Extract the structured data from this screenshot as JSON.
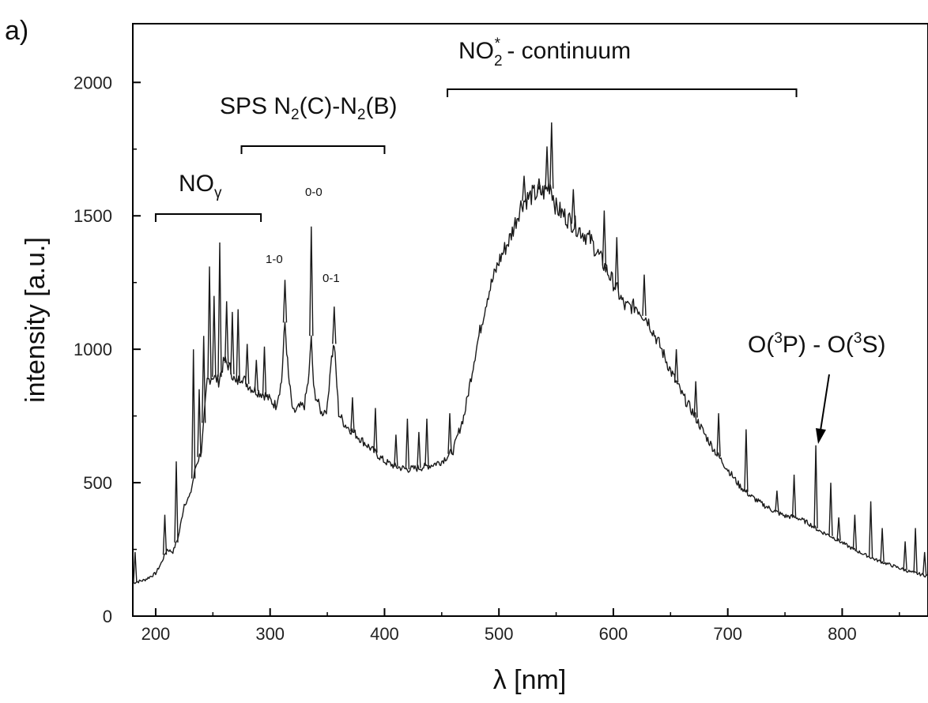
{
  "panel_label": "a)",
  "chart_data": {
    "type": "line",
    "title": "",
    "xlabel": "λ [nm]",
    "ylabel": "intensity [a.u.]",
    "xlim": [
      180,
      875
    ],
    "ylim": [
      0,
      2220
    ],
    "xticks": [
      200,
      300,
      400,
      500,
      600,
      700,
      800
    ],
    "yticks": [
      0,
      500,
      1000,
      1500,
      2000
    ],
    "grid": false,
    "legend": "none",
    "series": [
      {
        "points": [
          [
            180,
            125
          ],
          [
            190,
            135
          ],
          [
            200,
            160
          ],
          [
            205,
            200
          ],
          [
            210,
            250
          ],
          [
            215,
            240
          ],
          [
            220,
            300
          ],
          [
            225,
            420
          ],
          [
            230,
            450
          ],
          [
            235,
            560
          ],
          [
            240,
            620
          ],
          [
            245,
            880
          ],
          [
            250,
            900
          ],
          [
            255,
            880
          ],
          [
            260,
            960
          ],
          [
            265,
            930
          ],
          [
            270,
            870
          ],
          [
            275,
            900
          ],
          [
            280,
            870
          ],
          [
            285,
            850
          ],
          [
            290,
            840
          ],
          [
            295,
            830
          ],
          [
            300,
            810
          ],
          [
            305,
            790
          ],
          [
            310,
            880
          ],
          [
            313,
            1100
          ],
          [
            316,
            900
          ],
          [
            320,
            760
          ],
          [
            325,
            780
          ],
          [
            330,
            790
          ],
          [
            334,
            900
          ],
          [
            336,
            1050
          ],
          [
            338,
            850
          ],
          [
            345,
            760
          ],
          [
            350,
            780
          ],
          [
            353,
            950
          ],
          [
            356,
            1020
          ],
          [
            360,
            760
          ],
          [
            365,
            720
          ],
          [
            370,
            700
          ],
          [
            380,
            660
          ],
          [
            390,
            620
          ],
          [
            400,
            580
          ],
          [
            410,
            560
          ],
          [
            420,
            550
          ],
          [
            430,
            555
          ],
          [
            440,
            565
          ],
          [
            450,
            580
          ],
          [
            460,
            620
          ],
          [
            470,
            760
          ],
          [
            480,
            1000
          ],
          [
            490,
            1200
          ],
          [
            500,
            1330
          ],
          [
            510,
            1420
          ],
          [
            520,
            1550
          ],
          [
            530,
            1580
          ],
          [
            540,
            1590
          ],
          [
            545,
            1620
          ],
          [
            550,
            1530
          ],
          [
            560,
            1490
          ],
          [
            570,
            1450
          ],
          [
            580,
            1410
          ],
          [
            590,
            1330
          ],
          [
            600,
            1250
          ],
          [
            610,
            1160
          ],
          [
            620,
            1160
          ],
          [
            630,
            1110
          ],
          [
            640,
            1020
          ],
          [
            650,
            920
          ],
          [
            660,
            830
          ],
          [
            670,
            760
          ],
          [
            680,
            680
          ],
          [
            690,
            610
          ],
          [
            700,
            550
          ],
          [
            710,
            490
          ],
          [
            720,
            450
          ],
          [
            730,
            420
          ],
          [
            740,
            395
          ],
          [
            750,
            375
          ],
          [
            760,
            370
          ],
          [
            770,
            350
          ],
          [
            780,
            320
          ],
          [
            790,
            300
          ],
          [
            800,
            275
          ],
          [
            810,
            250
          ],
          [
            820,
            230
          ],
          [
            830,
            210
          ],
          [
            840,
            195
          ],
          [
            850,
            180
          ],
          [
            860,
            165
          ],
          [
            875,
            150
          ]
        ]
      }
    ],
    "peaks": [
      [
        182,
        240
      ],
      [
        208,
        380
      ],
      [
        218,
        580
      ],
      [
        233,
        1000
      ],
      [
        238,
        850
      ],
      [
        242,
        1050
      ],
      [
        247,
        1310
      ],
      [
        251,
        1200
      ],
      [
        256,
        1400
      ],
      [
        262,
        1180
      ],
      [
        267,
        1140
      ],
      [
        272,
        1150
      ],
      [
        280,
        1020
      ],
      [
        288,
        960
      ],
      [
        295,
        1010
      ],
      [
        313,
        1260
      ],
      [
        336,
        1460
      ],
      [
        356,
        1160
      ],
      [
        372,
        820
      ],
      [
        392,
        780
      ],
      [
        410,
        680
      ],
      [
        420,
        740
      ],
      [
        430,
        690
      ],
      [
        437,
        740
      ],
      [
        457,
        760
      ],
      [
        522,
        1650
      ],
      [
        535,
        1640
      ],
      [
        542,
        1760
      ],
      [
        546,
        1850
      ],
      [
        565,
        1600
      ],
      [
        592,
        1520
      ],
      [
        603,
        1420
      ],
      [
        627,
        1280
      ],
      [
        655,
        1000
      ],
      [
        672,
        880
      ],
      [
        692,
        760
      ],
      [
        716,
        700
      ],
      [
        743,
        470
      ],
      [
        758,
        530
      ],
      [
        777,
        640
      ],
      [
        790,
        500
      ],
      [
        797,
        370
      ],
      [
        811,
        380
      ],
      [
        825,
        430
      ],
      [
        835,
        330
      ],
      [
        855,
        280
      ],
      [
        864,
        330
      ],
      [
        872,
        240
      ]
    ],
    "annotations": [
      {
        "id": "no-gamma",
        "label": "NO",
        "sub": "γ",
        "range": [
          200,
          292
        ]
      },
      {
        "id": "sps",
        "label_a": "SPS N",
        "sub_a": "2",
        "label_b": "(C)-N",
        "sub_b": "2",
        "label_c": "(B)",
        "range": [
          275,
          400
        ]
      },
      {
        "id": "no2",
        "label_a": "NO",
        "sub_a": "2",
        "sup_a": "*",
        "label_b": " - continuum",
        "range": [
          455,
          760
        ]
      },
      {
        "id": "band-1-0",
        "label": "1-0",
        "x": 313
      },
      {
        "id": "band-0-0",
        "label": "0-0",
        "x": 336
      },
      {
        "id": "band-0-1",
        "label": "0-1",
        "x": 356
      },
      {
        "id": "oxygen",
        "label_a": "O(",
        "sup_a": "3",
        "label_b": "P) - O(",
        "sup_b": "3",
        "label_c": "S)",
        "x": 777
      }
    ]
  }
}
